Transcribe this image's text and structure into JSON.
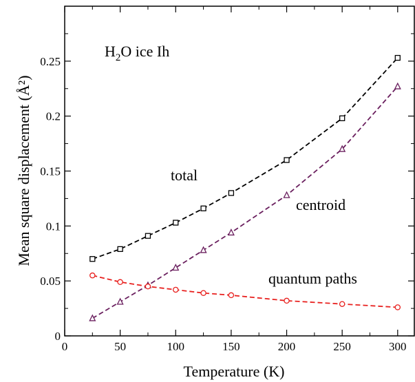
{
  "chart_data": {
    "type": "line",
    "xlabel": "Temperature  (K)",
    "ylabel": "Mean  square  displacement  (Å²)",
    "xlim": [
      0,
      315
    ],
    "ylim": [
      0,
      0.3
    ],
    "xticks": [
      0,
      50,
      100,
      150,
      200,
      250,
      300
    ],
    "yticks": [
      0,
      0.05,
      0.1,
      0.15,
      0.2,
      0.25
    ],
    "xtick_labels": [
      "0",
      "50",
      "100",
      "150",
      "200",
      "250",
      "300"
    ],
    "ytick_labels": [
      "0",
      "0.05",
      "0.1",
      "0.15",
      "0.2",
      "0.25"
    ],
    "annotation": {
      "prefix": "H",
      "sub": "2",
      "suffix": "O  ice  Ih"
    },
    "series": [
      {
        "name": "total",
        "color": "#000000",
        "marker": "square",
        "x": [
          25,
          50,
          75,
          100,
          125,
          150,
          200,
          250,
          300
        ],
        "y": [
          0.07,
          0.079,
          0.091,
          0.103,
          0.116,
          0.13,
          0.16,
          0.198,
          0.253
        ]
      },
      {
        "name": "centroid",
        "color": "#6a1f5e",
        "marker": "triangle",
        "x": [
          25,
          50,
          75,
          100,
          125,
          150,
          200,
          250,
          300
        ],
        "y": [
          0.016,
          0.031,
          0.046,
          0.062,
          0.078,
          0.094,
          0.128,
          0.17,
          0.227
        ]
      },
      {
        "name": "quantum paths",
        "color": "#e8201e",
        "marker": "circle",
        "x": [
          25,
          50,
          75,
          100,
          125,
          150,
          200,
          250,
          300
        ],
        "y": [
          0.055,
          0.049,
          0.045,
          0.042,
          0.039,
          0.037,
          0.032,
          0.029,
          0.026
        ]
      }
    ]
  }
}
